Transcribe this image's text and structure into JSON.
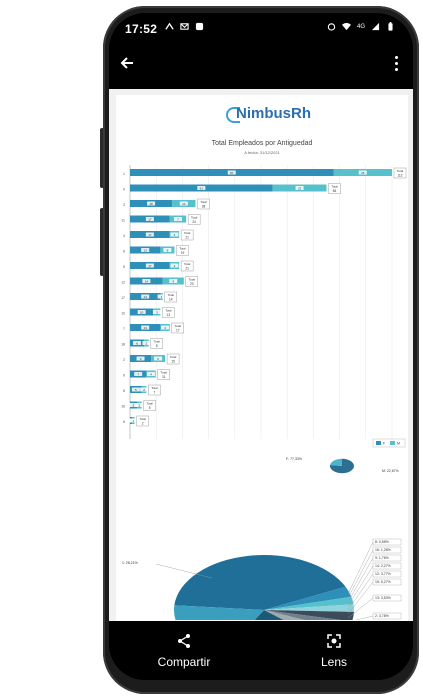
{
  "status": {
    "time": "17:52",
    "battery_label": "",
    "network_label": "4G"
  },
  "appbar": {
    "back_icon": "arrow-left-icon",
    "menu_icon": "more-vert-icon"
  },
  "document": {
    "logo": "NimbusRh",
    "title": "Total Empleados por Antiguedad",
    "subtitle": "A fecha:  31/12/2021",
    "legend": [
      "F",
      "M"
    ],
    "colors": {
      "F": "#2e8fb8",
      "M": "#56c0cc"
    }
  },
  "chart_data": [
    {
      "type": "bar",
      "title": "Total Empleados por Antiguedad",
      "categories": [
        "1",
        "0",
        "3",
        "11",
        "4",
        "6",
        "5",
        "12",
        "17",
        "10",
        "7",
        "18",
        "2",
        "9",
        "8",
        "16",
        "6"
      ],
      "series": [
        {
          "name": "F",
          "values": [
            87,
            61,
            18,
            17,
            17,
            13,
            17,
            14,
            13,
            10,
            13,
            6,
            9,
            7,
            5,
            3,
            1
          ]
        },
        {
          "name": "M",
          "values": [
            25,
            23,
            10,
            7,
            4,
            6,
            4,
            9,
            1,
            3,
            4,
            2,
            6,
            4,
            2,
            2,
            1
          ]
        }
      ],
      "totals": [
        112,
        84,
        28,
        24,
        21,
        19,
        21,
        23,
        14,
        13,
        17,
        8,
        15,
        11,
        7,
        5,
        2
      ],
      "total_label": "Total"
    },
    {
      "type": "pie",
      "labels": [
        "F: 77,33%",
        "M: 22,67%"
      ],
      "values": [
        77.33,
        22.67
      ]
    },
    {
      "type": "pie",
      "labels": [
        "1: 28,21%",
        "8: 0,55%",
        "16: 1,26%",
        "9: 1,76%",
        "14: 2,27%",
        "12: 3,77%",
        "15: 5,27%",
        "13: 3,53%",
        "2: 3,78%",
        "3: 4,28%"
      ]
    }
  ],
  "bottombar": {
    "share_label": "Compartir",
    "lens_label": "Lens"
  }
}
